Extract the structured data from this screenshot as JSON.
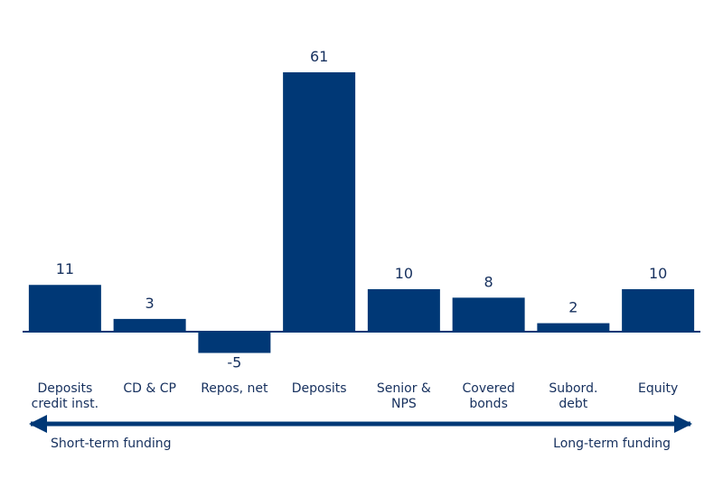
{
  "chart_data": {
    "type": "bar",
    "categories": [
      [
        "Deposits",
        "credit inst."
      ],
      [
        "CD & CP"
      ],
      [
        "Repos, net"
      ],
      [
        "Deposits"
      ],
      [
        "Senior &",
        "NPS"
      ],
      [
        "Covered",
        "bonds"
      ],
      [
        "Subord.",
        "debt"
      ],
      [
        "Equity"
      ]
    ],
    "values": [
      11,
      3,
      -5,
      61,
      10,
      8,
      2,
      10
    ],
    "color": "#003876",
    "annotations": {
      "left": "Short-term funding",
      "right": "Long-term funding"
    }
  }
}
